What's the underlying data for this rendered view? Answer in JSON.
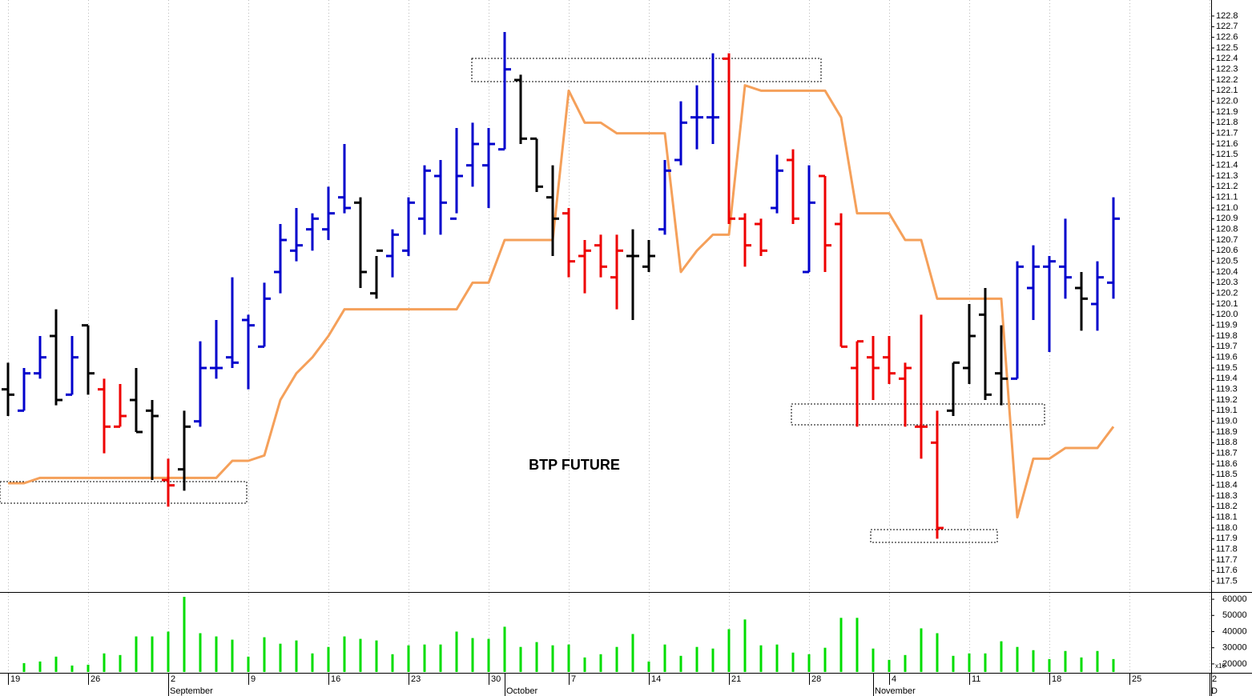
{
  "chart_data": {
    "type": "ohlc",
    "title": "BTP FUTURE",
    "categories": [
      "19",
      null,
      null,
      null,
      null,
      "26",
      null,
      null,
      null,
      null,
      "2",
      null,
      null,
      null,
      null,
      "9",
      null,
      null,
      null,
      null,
      "16",
      null,
      null,
      null,
      null,
      "23",
      null,
      null,
      null,
      null,
      "30",
      null,
      null,
      null,
      null,
      "7",
      null,
      null,
      null,
      null,
      "14",
      null,
      null,
      null,
      null,
      "21",
      null,
      null,
      null,
      null,
      "28",
      null,
      null,
      null,
      null,
      "4",
      null,
      null,
      null,
      null,
      "11",
      null,
      null,
      null,
      null,
      "18",
      null,
      null,
      null,
      null,
      "25",
      null,
      null,
      null,
      null,
      "2"
    ],
    "month_labels": [
      "September",
      "October",
      "November",
      "D"
    ],
    "month_start_index": [
      10,
      31,
      54,
      75
    ],
    "open": [
      119.3,
      119.1,
      119.45,
      119.8,
      119.25,
      119.9,
      119.3,
      118.95,
      119.2,
      119.1,
      118.45,
      118.55,
      119.0,
      119.5,
      119.6,
      119.95,
      119.7,
      120.4,
      120.6,
      120.8,
      120.8,
      121.1,
      121.05,
      120.2,
      120.55,
      120.6,
      120.9,
      121.3,
      120.9,
      121.4,
      121.4,
      121.55,
      122.2,
      121.65,
      121.1,
      120.95,
      120.55,
      120.65,
      120.35,
      120.55,
      120.45,
      120.8,
      121.45,
      121.85,
      121.85,
      122.4,
      120.9,
      120.85,
      121.0,
      121.45,
      120.4,
      121.3,
      120.85,
      119.5,
      119.6,
      119.6,
      119.4,
      118.95,
      118.8,
      119.1,
      119.5,
      120.0,
      119.45,
      119.4,
      120.25,
      120.45,
      120.45,
      120.25,
      120.1,
      120.3,
      null,
      null,
      null,
      null,
      null,
      null
    ],
    "high": [
      119.55,
      119.5,
      119.8,
      120.05,
      119.8,
      119.9,
      119.4,
      119.35,
      119.5,
      119.2,
      118.65,
      119.1,
      119.75,
      119.95,
      120.35,
      120.0,
      120.3,
      120.85,
      121.0,
      120.95,
      121.2,
      121.6,
      121.1,
      120.55,
      120.8,
      121.1,
      121.4,
      121.45,
      121.75,
      121.8,
      121.75,
      122.65,
      122.25,
      121.65,
      121.4,
      121.0,
      120.7,
      120.75,
      120.75,
      120.8,
      120.7,
      121.45,
      122.0,
      122.15,
      122.45,
      122.45,
      120.95,
      120.9,
      121.5,
      121.55,
      121.4,
      121.3,
      120.95,
      119.75,
      119.8,
      119.8,
      119.55,
      120.0,
      119.1,
      119.55,
      120.1,
      120.25,
      119.9,
      120.5,
      120.65,
      120.55,
      120.9,
      120.4,
      120.5,
      121.1,
      null,
      null,
      null,
      null,
      null,
      null
    ],
    "low": [
      119.05,
      119.1,
      119.4,
      119.15,
      119.25,
      119.25,
      118.7,
      118.95,
      118.9,
      118.45,
      118.2,
      118.35,
      118.95,
      119.4,
      119.5,
      119.3,
      119.7,
      120.2,
      120.5,
      120.6,
      120.7,
      120.95,
      120.25,
      120.15,
      120.35,
      120.55,
      120.75,
      120.75,
      120.95,
      121.2,
      121.0,
      121.55,
      121.6,
      121.15,
      120.55,
      120.35,
      120.2,
      120.35,
      120.05,
      119.95,
      120.4,
      120.75,
      121.4,
      121.55,
      121.6,
      120.85,
      120.45,
      120.55,
      120.95,
      120.85,
      120.4,
      120.4,
      119.7,
      118.95,
      119.2,
      119.35,
      118.95,
      118.65,
      117.9,
      119.05,
      119.35,
      119.2,
      119.15,
      119.4,
      119.95,
      119.65,
      120.15,
      119.85,
      119.85,
      120.15,
      null,
      null,
      null,
      null,
      null,
      null
    ],
    "close": [
      119.25,
      119.45,
      119.6,
      119.2,
      119.6,
      119.45,
      118.95,
      119.05,
      118.9,
      119.05,
      118.4,
      118.95,
      119.5,
      119.5,
      119.55,
      119.9,
      120.15,
      120.7,
      120.65,
      120.9,
      120.95,
      121.0,
      120.4,
      120.6,
      120.75,
      121.05,
      121.35,
      121.05,
      121.3,
      121.6,
      121.6,
      122.3,
      121.65,
      121.2,
      120.9,
      120.5,
      120.6,
      120.45,
      120.6,
      120.55,
      120.55,
      121.35,
      121.8,
      121.85,
      121.85,
      120.9,
      120.65,
      120.6,
      121.35,
      120.9,
      121.05,
      120.65,
      119.7,
      119.75,
      119.5,
      119.45,
      119.5,
      118.95,
      118.0,
      119.55,
      119.8,
      119.25,
      119.4,
      120.45,
      120.45,
      120.5,
      120.35,
      120.15,
      120.35,
      120.9,
      null,
      null,
      null,
      null,
      null,
      null
    ],
    "bar_colors": [
      "#000000",
      "#0000cc",
      "#0000cc",
      "#000000",
      "#0000cc",
      "#000000",
      "#ee0000",
      "#ee0000",
      "#000000",
      "#000000",
      "#ee0000",
      "#000000",
      "#0000cc",
      "#0000cc",
      "#0000cc",
      "#0000cc",
      "#0000cc",
      "#0000cc",
      "#0000cc",
      "#0000cc",
      "#0000cc",
      "#0000cc",
      "#000000",
      "#000000",
      "#0000cc",
      "#0000cc",
      "#0000cc",
      "#0000cc",
      "#0000cc",
      "#0000cc",
      "#0000cc",
      "#0000cc",
      "#000000",
      "#000000",
      "#000000",
      "#ee0000",
      "#ee0000",
      "#ee0000",
      "#ee0000",
      "#000000",
      "#000000",
      "#0000cc",
      "#0000cc",
      "#0000cc",
      "#0000cc",
      "#ee0000",
      "#ee0000",
      "#ee0000",
      "#0000cc",
      "#ee0000",
      "#0000cc",
      "#ee0000",
      "#ee0000",
      "#ee0000",
      "#ee0000",
      "#ee0000",
      "#ee0000",
      "#ee0000",
      "#ee0000",
      "#000000",
      "#000000",
      "#000000",
      "#000000",
      "#0000cc",
      "#0000cc",
      "#0000cc",
      "#0000cc",
      "#000000",
      "#0000cc",
      "#0000cc",
      null,
      null,
      null,
      null,
      null,
      null
    ],
    "line": {
      "color": "#f5a05a",
      "values": [
        118.42,
        118.42,
        118.47,
        118.47,
        118.47,
        118.47,
        118.47,
        118.47,
        118.47,
        118.47,
        118.47,
        118.47,
        118.47,
        118.47,
        118.63,
        118.63,
        118.68,
        119.2,
        119.45,
        119.6,
        119.8,
        120.05,
        120.05,
        120.05,
        120.05,
        120.05,
        120.05,
        120.05,
        120.05,
        120.3,
        120.3,
        120.7,
        120.7,
        120.7,
        120.7,
        122.1,
        121.8,
        121.8,
        121.7,
        121.7,
        121.7,
        121.7,
        120.4,
        120.6,
        120.75,
        120.75,
        122.15,
        122.1,
        122.1,
        122.1,
        122.1,
        122.1,
        121.85,
        120.95,
        120.95,
        120.95,
        120.7,
        120.7,
        120.15,
        120.15,
        120.15,
        120.15,
        120.15,
        118.1,
        118.65,
        118.65,
        118.75,
        118.75,
        118.75,
        118.95,
        null,
        null,
        null,
        null,
        null,
        null
      ]
    },
    "ylim": [
      117.4,
      122.95
    ],
    "yticks": [
      117.5,
      117.6,
      117.7,
      117.8,
      117.9,
      {
        "value": 118,
        "label": "118.0"
      },
      118.1,
      118.2,
      118.3,
      118.4,
      118.5,
      118.6,
      118.7,
      118.8,
      118.9,
      {
        "value": 119,
        "label": "119.0"
      },
      119.1,
      119.2,
      119.3,
      119.4,
      119.5,
      119.6,
      119.7,
      119.8,
      119.9,
      {
        "value": 120,
        "label": "120.0"
      },
      120.1,
      120.2,
      120.3,
      120.4,
      120.5,
      120.6,
      120.7,
      120.8,
      120.9,
      {
        "value": 121,
        "label": "121.0"
      },
      121.1,
      121.2,
      121.3,
      121.4,
      121.5,
      121.6,
      121.7,
      121.8,
      121.9,
      {
        "value": 122,
        "label": "122.0"
      },
      122.1,
      122.2,
      122.3,
      122.4,
      122.5,
      122.6,
      122.7,
      122.8
    ],
    "volume": {
      "color": "#00dd00",
      "axis_note": "x10",
      "values": [
        null,
        20500,
        21500,
        24500,
        19000,
        19500,
        26500,
        25500,
        37000,
        37000,
        40000,
        61500,
        39000,
        37000,
        35000,
        24500,
        36500,
        32500,
        34500,
        26500,
        30500,
        37000,
        35500,
        34500,
        26000,
        31500,
        32000,
        32000,
        40000,
        36000,
        35500,
        43000,
        30500,
        33500,
        31500,
        32000,
        24000,
        26000,
        30500,
        38500,
        21500,
        32000,
        25000,
        30500,
        29500,
        41500,
        47500,
        31500,
        32000,
        27000,
        26000,
        30000,
        48500,
        48500,
        29500,
        22500,
        25500,
        42000,
        39000,
        25000,
        26500,
        26500,
        34000,
        30500,
        28500,
        23000,
        28000,
        24000,
        28000,
        23000,
        null,
        null,
        null,
        null,
        null,
        null
      ],
      "ylim": [
        15000,
        63500
      ],
      "yticks": [
        20000,
        30000,
        40000,
        50000,
        60000
      ]
    },
    "grid": true
  }
}
